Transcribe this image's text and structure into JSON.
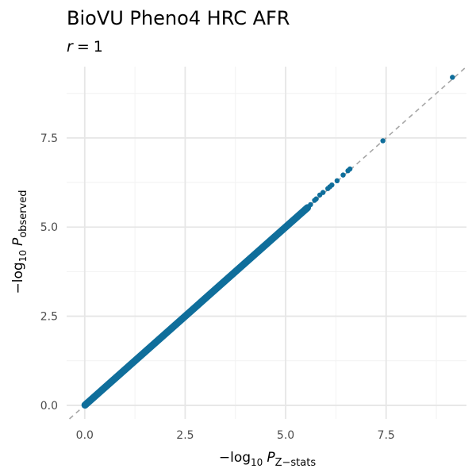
{
  "chart_data": {
    "type": "scatter",
    "title": "BioVU Pheno4 HRC AFR",
    "subtitle": {
      "var": "r",
      "op": "=",
      "value": "1"
    },
    "xlabel": {
      "prefix": "−log",
      "base": "10",
      "var": "P",
      "sub": "Z−stats"
    },
    "ylabel": {
      "prefix": "−log",
      "base": "10",
      "var": "P",
      "sub": "observed"
    },
    "xlim": [
      -0.45,
      9.5
    ],
    "ylim": [
      -0.38,
      9.5
    ],
    "x_ticks": [
      0,
      2.5,
      5,
      7.5
    ],
    "x_tick_labels": [
      "0.0",
      "2.5",
      "5.0",
      "7.5"
    ],
    "y_ticks": [
      0,
      2.5,
      5,
      7.5
    ],
    "y_tick_labels": [
      "0.0",
      "2.5",
      "5.0",
      "7.5"
    ],
    "grid": true,
    "reference_line": {
      "slope": 1,
      "intercept": 0,
      "style": "dashed",
      "color": "#a6a6a6"
    },
    "point_color": "#0f6e9b",
    "dense_band": {
      "x_from": 0,
      "x_to": 5.55
    },
    "points": [
      {
        "x": 5.62,
        "y": 5.63
      },
      {
        "x": 5.72,
        "y": 5.75
      },
      {
        "x": 5.76,
        "y": 5.79
      },
      {
        "x": 5.85,
        "y": 5.9
      },
      {
        "x": 5.93,
        "y": 5.97
      },
      {
        "x": 6.05,
        "y": 6.08
      },
      {
        "x": 6.1,
        "y": 6.13
      },
      {
        "x": 6.15,
        "y": 6.18
      },
      {
        "x": 6.28,
        "y": 6.3
      },
      {
        "x": 6.43,
        "y": 6.46
      },
      {
        "x": 6.55,
        "y": 6.58
      },
      {
        "x": 6.6,
        "y": 6.63
      },
      {
        "x": 7.42,
        "y": 7.42
      },
      {
        "x": 9.15,
        "y": 9.2
      }
    ]
  }
}
